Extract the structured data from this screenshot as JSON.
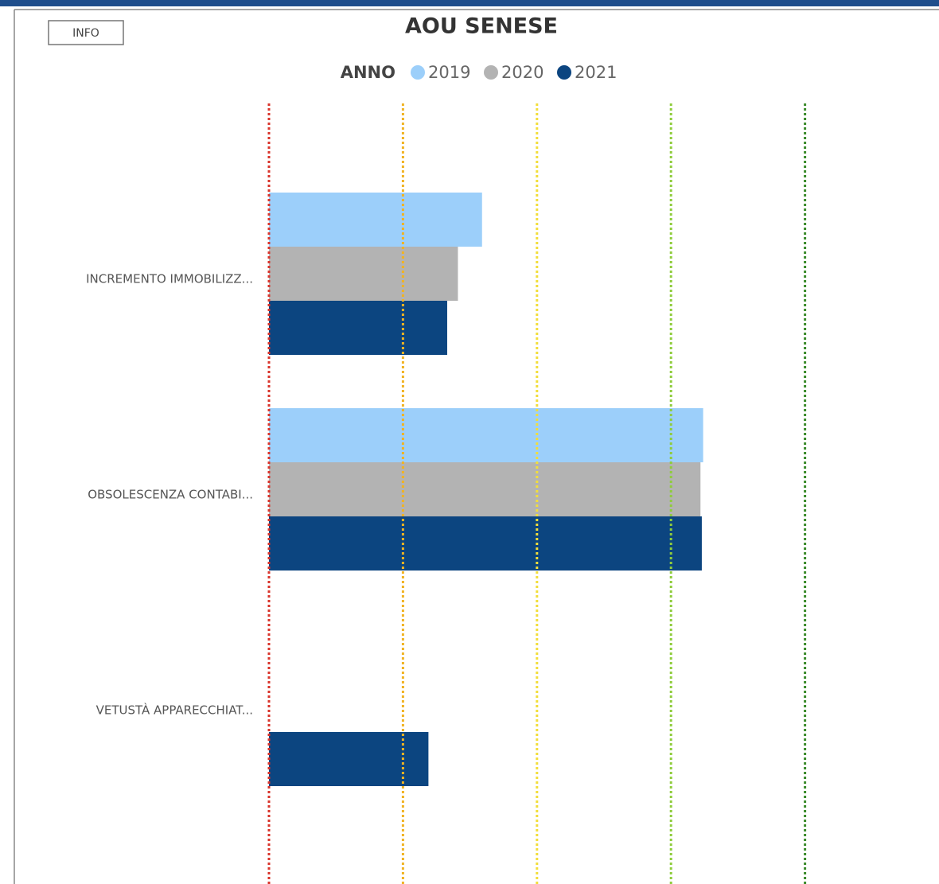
{
  "button": "INFO",
  "chart_data": {
    "type": "bar",
    "orientation": "horizontal",
    "title": "AOU SENESE",
    "legend_title": "ANNO",
    "legend_position": "top",
    "categories": [
      "INCREMENTO IMMOBILIZZ...",
      "OBSOLESCENZA CONTABI...",
      "VETUSTÀ APPARECCHIAT..."
    ],
    "series": [
      {
        "name": "2019",
        "color": "#9ccffa",
        "values": [
          1.59,
          3.24,
          null
        ]
      },
      {
        "name": "2020",
        "color": "#b3b3b3",
        "values": [
          1.41,
          3.22,
          null
        ]
      },
      {
        "name": "2021",
        "color": "#0c4580",
        "values": [
          1.33,
          3.23,
          1.19
        ]
      }
    ],
    "xlim": [
      0,
      5
    ],
    "reference_lines": [
      {
        "value": 0,
        "color": "#d9342b"
      },
      {
        "value": 1,
        "color": "#f0b323"
      },
      {
        "value": 2,
        "color": "#f2de3a"
      },
      {
        "value": 3,
        "color": "#8fcc3c"
      },
      {
        "value": 4,
        "color": "#3a8a2a"
      }
    ]
  }
}
